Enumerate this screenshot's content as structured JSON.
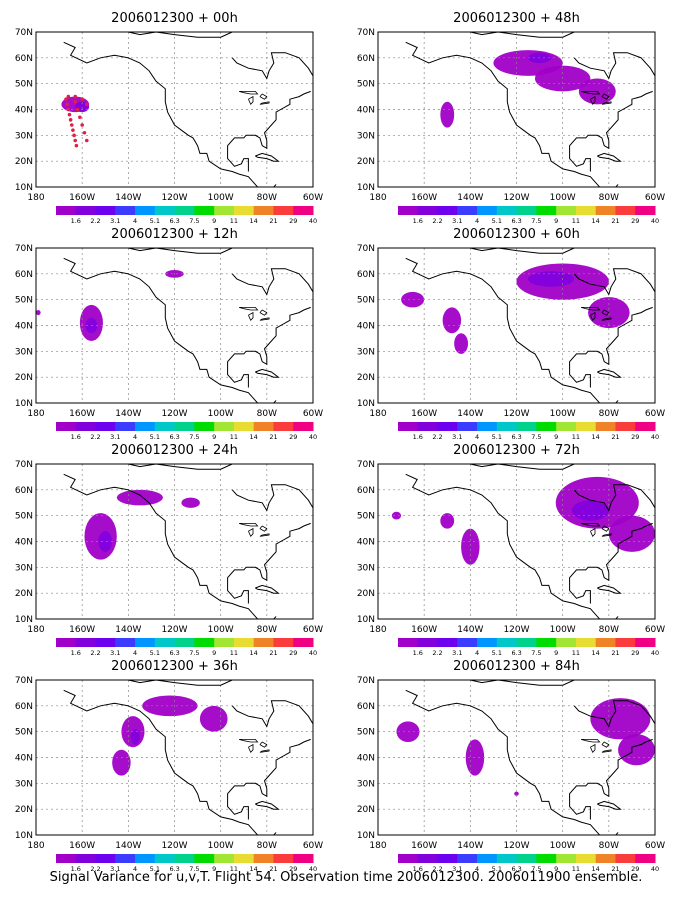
{
  "footer": "Signal Variance for u,v,T. Flight 54. Observation time 2006012300. 2006011900 ensemble.",
  "axes": {
    "lat_labels": [
      "10N",
      "20N",
      "30N",
      "40N",
      "50N",
      "60N",
      "70N"
    ],
    "lon_labels": [
      "180",
      "160W",
      "140W",
      "120W",
      "100W",
      "80W",
      "60W"
    ],
    "lon_range": [
      -180,
      -60
    ],
    "lat_range": [
      10,
      70
    ],
    "grid": true
  },
  "colorbar": {
    "labels": [
      "1.6",
      "2.2",
      "3.1",
      "4",
      "5.1",
      "6.3",
      "7.5",
      "9",
      "11",
      "14",
      "21",
      "29",
      "40"
    ],
    "colors": [
      "#a000c8",
      "#8200dc",
      "#6e00f0",
      "#3c3cff",
      "#0096ff",
      "#00c8c8",
      "#00d28c",
      "#00dc00",
      "#a0e632",
      "#e6dc32",
      "#f08228",
      "#fa3c3c",
      "#f00082"
    ]
  },
  "colors": {
    "coast": "#000000",
    "grid": "#888888",
    "shade_low": "#a000c8",
    "shade_mid": "#8200dc",
    "shade_high": "#3c3cff",
    "flight_track": "#e0204a"
  },
  "panels": [
    {
      "title": "2006012300 + 00h",
      "track": [
        [
          -167,
          44
        ],
        [
          -166.5,
          42
        ],
        [
          -166,
          40
        ],
        [
          -165.5,
          38
        ],
        [
          -165,
          36
        ],
        [
          -164.5,
          34
        ],
        [
          -164,
          32
        ],
        [
          -163.5,
          30
        ],
        [
          -163,
          28
        ],
        [
          -162.5,
          26
        ],
        [
          -163,
          43
        ],
        [
          -162,
          40
        ],
        [
          -161,
          37
        ],
        [
          -160,
          34
        ],
        [
          -159,
          31
        ],
        [
          -158,
          28
        ],
        [
          -166,
          45
        ],
        [
          -163,
          45
        ],
        [
          -160,
          44
        ],
        [
          -158,
          42
        ]
      ],
      "blobs": [
        {
          "lon": -163,
          "lat": 42,
          "rx": 6,
          "ry": 3,
          "level": 0
        },
        {
          "lon": -160,
          "lat": 41,
          "rx": 3,
          "ry": 2,
          "level": 1
        }
      ]
    },
    {
      "title": "2006012300 + 48h",
      "track": [],
      "blobs": [
        {
          "lon": -150,
          "lat": 38,
          "rx": 3,
          "ry": 5,
          "level": 0
        },
        {
          "lon": -115,
          "lat": 58,
          "rx": 15,
          "ry": 5,
          "level": 0
        },
        {
          "lon": -100,
          "lat": 52,
          "rx": 12,
          "ry": 5,
          "level": 0
        },
        {
          "lon": -85,
          "lat": 47,
          "rx": 8,
          "ry": 5,
          "level": 0
        },
        {
          "lon": -110,
          "lat": 60,
          "rx": 5,
          "ry": 2,
          "level": 1
        }
      ]
    },
    {
      "title": "2006012300 + 12h",
      "track": [],
      "blobs": [
        {
          "lon": -156,
          "lat": 41,
          "rx": 5,
          "ry": 7,
          "level": 0
        },
        {
          "lon": -156,
          "lat": 40,
          "rx": 2.5,
          "ry": 3,
          "level": 1
        },
        {
          "lon": -120,
          "lat": 60,
          "rx": 4,
          "ry": 1.5,
          "level": 0
        },
        {
          "lon": -179,
          "lat": 45,
          "rx": 1,
          "ry": 1,
          "level": 0
        }
      ]
    },
    {
      "title": "2006012300 + 60h",
      "track": [],
      "blobs": [
        {
          "lon": -165,
          "lat": 50,
          "rx": 5,
          "ry": 3,
          "level": 0
        },
        {
          "lon": -148,
          "lat": 42,
          "rx": 4,
          "ry": 5,
          "level": 0
        },
        {
          "lon": -144,
          "lat": 33,
          "rx": 3,
          "ry": 4,
          "level": 0
        },
        {
          "lon": -100,
          "lat": 57,
          "rx": 20,
          "ry": 7,
          "level": 0
        },
        {
          "lon": -80,
          "lat": 45,
          "rx": 9,
          "ry": 6,
          "level": 0
        },
        {
          "lon": -105,
          "lat": 58,
          "rx": 10,
          "ry": 3,
          "level": 1
        }
      ]
    },
    {
      "title": "2006012300 + 24h",
      "track": [],
      "blobs": [
        {
          "lon": -152,
          "lat": 42,
          "rx": 7,
          "ry": 9,
          "level": 0
        },
        {
          "lon": -150,
          "lat": 40,
          "rx": 3,
          "ry": 4,
          "level": 1
        },
        {
          "lon": -135,
          "lat": 57,
          "rx": 10,
          "ry": 3,
          "level": 0
        },
        {
          "lon": -113,
          "lat": 55,
          "rx": 4,
          "ry": 2,
          "level": 0
        }
      ]
    },
    {
      "title": "2006012300 + 72h",
      "track": [],
      "blobs": [
        {
          "lon": -172,
          "lat": 50,
          "rx": 2,
          "ry": 1.5,
          "level": 0
        },
        {
          "lon": -150,
          "lat": 48,
          "rx": 3,
          "ry": 3,
          "level": 0
        },
        {
          "lon": -140,
          "lat": 38,
          "rx": 4,
          "ry": 7,
          "level": 0
        },
        {
          "lon": -85,
          "lat": 55,
          "rx": 18,
          "ry": 10,
          "level": 0
        },
        {
          "lon": -70,
          "lat": 43,
          "rx": 10,
          "ry": 7,
          "level": 0
        },
        {
          "lon": -88,
          "lat": 52,
          "rx": 8,
          "ry": 4,
          "level": 1
        }
      ]
    },
    {
      "title": "2006012300 + 36h",
      "track": [],
      "blobs": [
        {
          "lon": -143,
          "lat": 38,
          "rx": 4,
          "ry": 5,
          "level": 0
        },
        {
          "lon": -138,
          "lat": 50,
          "rx": 5,
          "ry": 6,
          "level": 0
        },
        {
          "lon": -122,
          "lat": 60,
          "rx": 12,
          "ry": 4,
          "level": 0
        },
        {
          "lon": -103,
          "lat": 55,
          "rx": 6,
          "ry": 5,
          "level": 0
        },
        {
          "lon": -137,
          "lat": 48,
          "rx": 2,
          "ry": 3,
          "level": 1
        }
      ]
    },
    {
      "title": "2006012300 + 84h",
      "track": [],
      "blobs": [
        {
          "lon": -167,
          "lat": 50,
          "rx": 5,
          "ry": 4,
          "level": 0
        },
        {
          "lon": -138,
          "lat": 40,
          "rx": 4,
          "ry": 7,
          "level": 0
        },
        {
          "lon": -75,
          "lat": 55,
          "rx": 13,
          "ry": 8,
          "level": 0
        },
        {
          "lon": -68,
          "lat": 43,
          "rx": 8,
          "ry": 6,
          "level": 0
        },
        {
          "lon": -120,
          "lat": 26,
          "rx": 1,
          "ry": 0.8,
          "level": 0
        }
      ]
    }
  ]
}
